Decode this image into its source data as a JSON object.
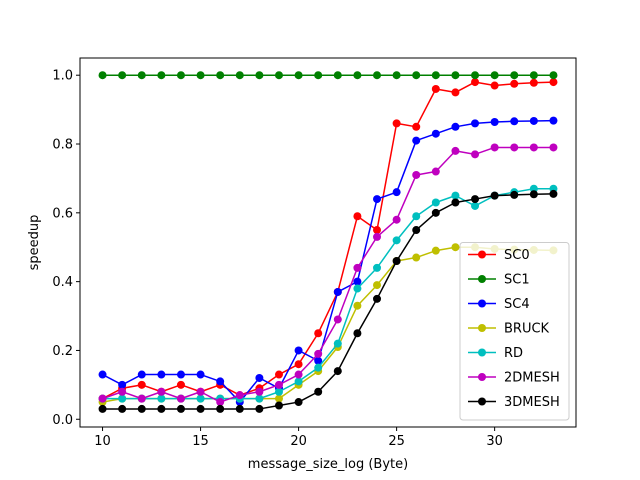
{
  "chart_data": {
    "type": "line",
    "title": "",
    "xlabel": "message_size_log (Byte)",
    "ylabel": "speedup",
    "xlim": [
      8.85,
      34.15
    ],
    "ylim": [
      -0.0225,
      1.05
    ],
    "xticks": [
      10,
      15,
      20,
      25,
      30
    ],
    "yticks": [
      0.0,
      0.2,
      0.4,
      0.6,
      0.8,
      1.0
    ],
    "xtick_labels": [
      "10",
      "15",
      "20",
      "25",
      "30"
    ],
    "ytick_labels": [
      "0.0",
      "0.2",
      "0.4",
      "0.6",
      "0.8",
      "1.0"
    ],
    "legend_position": "lower right",
    "x": [
      10,
      11,
      12,
      13,
      14,
      15,
      16,
      17,
      18,
      19,
      20,
      21,
      22,
      23,
      24,
      25,
      26,
      27,
      28,
      29,
      30,
      31,
      32,
      33
    ],
    "series": [
      {
        "name": "SC0",
        "color": "#ff0000",
        "values": [
          0.06,
          0.09,
          0.1,
          0.08,
          0.1,
          0.08,
          0.1,
          0.07,
          0.09,
          0.13,
          0.16,
          0.25,
          0.37,
          0.59,
          0.55,
          0.86,
          0.85,
          0.96,
          0.95,
          0.98,
          0.97,
          0.975,
          0.978,
          0.98
        ]
      },
      {
        "name": "SC1",
        "color": "#008000",
        "values": [
          1.0,
          1.0,
          1.0,
          1.0,
          1.0,
          1.0,
          1.0,
          1.0,
          1.0,
          1.0,
          1.0,
          1.0,
          1.0,
          1.0,
          1.0,
          1.0,
          1.0,
          1.0,
          1.0,
          1.0,
          1.0,
          1.0,
          1.0,
          1.0
        ]
      },
      {
        "name": "SC4",
        "color": "#0000ff",
        "values": [
          0.13,
          0.1,
          0.13,
          0.13,
          0.13,
          0.13,
          0.11,
          0.05,
          0.12,
          0.09,
          0.2,
          0.17,
          0.37,
          0.4,
          0.64,
          0.66,
          0.81,
          0.83,
          0.85,
          0.86,
          0.864,
          0.866,
          0.867,
          0.868
        ]
      },
      {
        "name": "BRUCK",
        "color": "#bfbf00",
        "values": [
          0.05,
          0.06,
          0.06,
          0.06,
          0.06,
          0.06,
          0.06,
          0.06,
          0.06,
          0.06,
          0.1,
          0.14,
          0.21,
          0.33,
          0.39,
          0.46,
          0.47,
          0.49,
          0.5,
          0.5,
          0.495,
          0.493,
          0.492,
          0.491
        ]
      },
      {
        "name": "RD",
        "color": "#00bfbf",
        "values": [
          0.06,
          0.06,
          0.06,
          0.06,
          0.06,
          0.06,
          0.06,
          0.06,
          0.06,
          0.08,
          0.11,
          0.15,
          0.22,
          0.38,
          0.44,
          0.52,
          0.59,
          0.63,
          0.65,
          0.62,
          0.65,
          0.66,
          0.67,
          0.67
        ]
      },
      {
        "name": "2DMESH",
        "color": "#bf00bf",
        "values": [
          0.06,
          0.08,
          0.06,
          0.08,
          0.06,
          0.08,
          0.05,
          0.07,
          0.08,
          0.1,
          0.13,
          0.19,
          0.29,
          0.44,
          0.53,
          0.58,
          0.71,
          0.72,
          0.78,
          0.77,
          0.79,
          0.79,
          0.79,
          0.79
        ]
      },
      {
        "name": "3DMESH",
        "color": "#000000",
        "values": [
          0.03,
          0.03,
          0.03,
          0.03,
          0.03,
          0.03,
          0.03,
          0.03,
          0.03,
          0.04,
          0.05,
          0.08,
          0.14,
          0.25,
          0.35,
          0.46,
          0.55,
          0.6,
          0.63,
          0.64,
          0.65,
          0.652,
          0.654,
          0.655
        ]
      }
    ]
  }
}
